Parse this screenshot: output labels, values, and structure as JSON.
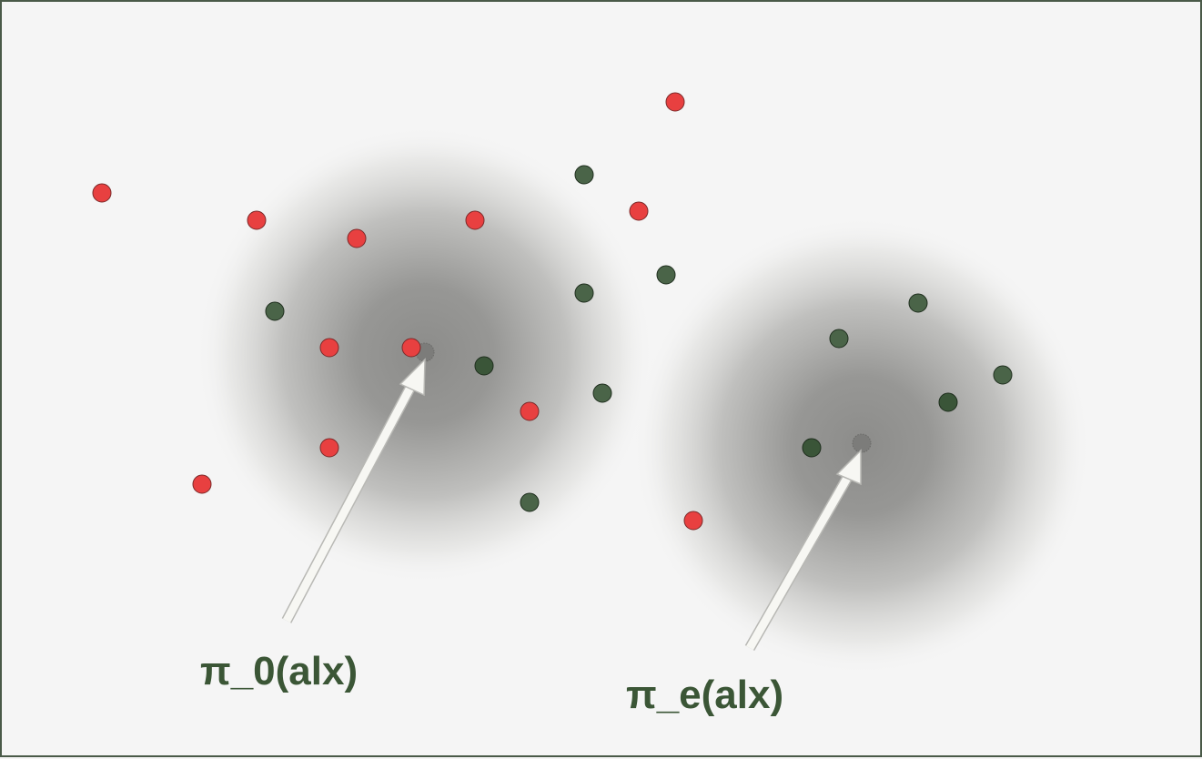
{
  "colors": {
    "background": "#f5f5f5",
    "border": "#4a5a48",
    "red_point": "#e84040",
    "green_point": "#3f5a3d",
    "label": "#3b5636",
    "arrow": "#f7f7f3",
    "cloud": "#8a8a88"
  },
  "labels": {
    "policy_0": "π_0(alx)",
    "policy_e": "π_e(alx)"
  }
}
